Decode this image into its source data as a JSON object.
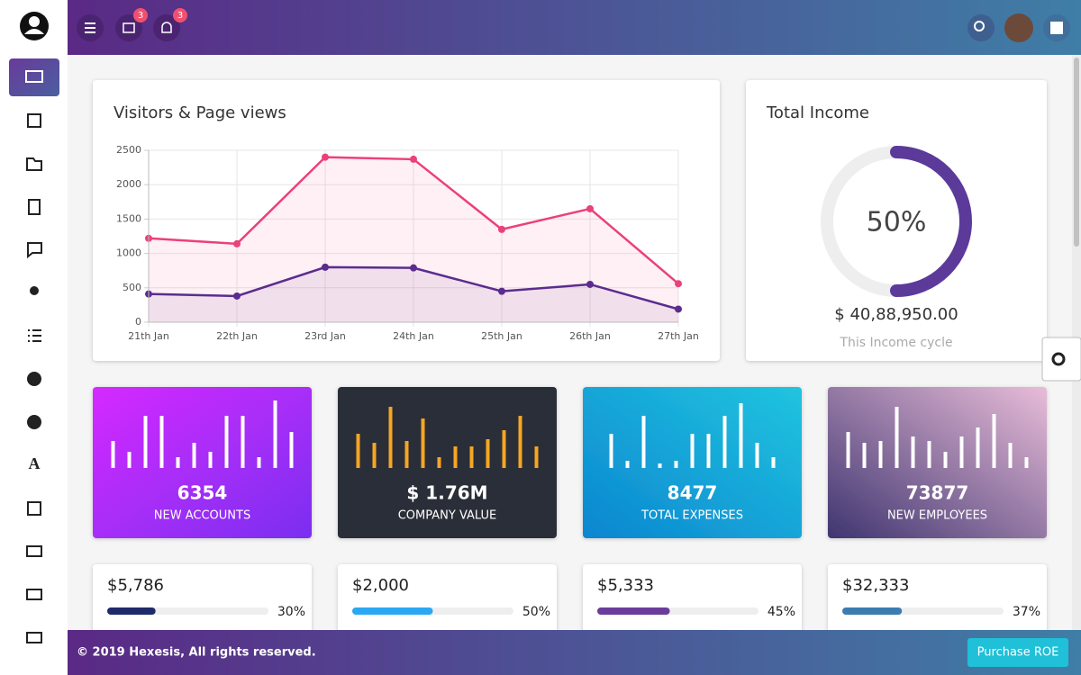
{
  "header": {
    "mail_badge": "3",
    "bell_badge": "3"
  },
  "visitors_chart": {
    "type": "line",
    "title": "Visitors & Page views",
    "categories": [
      "21th Jan",
      "22th Jan",
      "23rd Jan",
      "24th Jan",
      "25th Jan",
      "26th Jan",
      "27th Jan"
    ],
    "series": [
      {
        "color": "#ec407a",
        "values": [
          1220,
          1140,
          2400,
          2370,
          1350,
          1650,
          560
        ]
      },
      {
        "color": "#5b2c8f",
        "values": [
          410,
          380,
          800,
          790,
          450,
          550,
          190
        ]
      }
    ],
    "ylim": [
      0,
      2500
    ],
    "yticks": [
      0,
      500,
      1000,
      1500,
      2000,
      2500
    ],
    "grid": true
  },
  "income": {
    "title": "Total Income",
    "percent": 50,
    "percent_label": "50%",
    "color": "#5b3a9a",
    "amount": "$ 40,88,950.00",
    "caption": "This Income cycle"
  },
  "stat_cards": [
    {
      "value": "6354",
      "label": "NEW ACCOUNTS",
      "bar_color": "#ffffff",
      "bars": [
        30,
        18,
        58,
        58,
        12,
        28,
        18,
        58,
        58,
        12,
        75,
        40
      ]
    },
    {
      "value": "$ 1.76M",
      "label": "COMPANY VALUE",
      "bar_color": "#f5a623",
      "bars": [
        38,
        28,
        68,
        30,
        55,
        12,
        24,
        24,
        32,
        42,
        58,
        24
      ]
    },
    {
      "value": "8477",
      "label": "TOTAL EXPENSES",
      "bar_color": "#ffffff",
      "bars": [
        38,
        8,
        58,
        5,
        8,
        38,
        38,
        58,
        72,
        28,
        12
      ]
    },
    {
      "value": "73877",
      "label": "NEW EMPLOYEES",
      "bar_color": "#ffffff",
      "bars": [
        40,
        28,
        30,
        68,
        35,
        30,
        18,
        35,
        45,
        60,
        28,
        12
      ]
    }
  ],
  "progress_cards": [
    {
      "amount": "$5,786",
      "percent": 30,
      "percent_label": "30%",
      "color": "#1f2a6b"
    },
    {
      "amount": "$2,000",
      "percent": 50,
      "percent_label": "50%",
      "color": "#2aa8f2"
    },
    {
      "amount": "$5,333",
      "percent": 45,
      "percent_label": "45%",
      "color": "#6a3d9a"
    },
    {
      "amount": "$32,333",
      "percent": 37,
      "percent_label": "37%",
      "color": "#3c7cb0"
    }
  ],
  "footer": {
    "copyright": "© 2019 Hexesis, All rights reserved.",
    "button": "Purchase ROE"
  }
}
